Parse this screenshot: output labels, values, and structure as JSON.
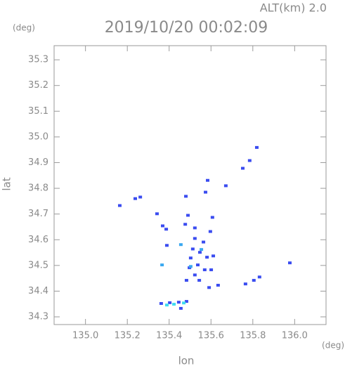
{
  "chart_data": {
    "type": "scatter",
    "title": "2019/10/20 00:02:09",
    "subtitle": "ALT(km) 2.0",
    "y_unit": "(deg)",
    "x_unit": "(deg)",
    "y_label": "lat",
    "x_label": "lon",
    "xlim": [
      134.85,
      136.15
    ],
    "ylim": [
      34.27,
      35.355
    ],
    "xticks": [
      {
        "value": 135,
        "label": "135.0"
      },
      135.2,
      135.4,
      135.6,
      135.8,
      {
        "value": 136,
        "label": "136.0"
      }
    ],
    "yticks": [
      34.3,
      34.4,
      34.5,
      34.6,
      34.7,
      34.8,
      34.9,
      {
        "value": 35,
        "label": "35.0"
      },
      35.1,
      35.2,
      35.3
    ],
    "series": [
      {
        "color": "#3a4cf0",
        "x": [
          135.164,
          135.238,
          135.262,
          135.342,
          135.369,
          135.386,
          135.389,
          135.48,
          135.584,
          135.574,
          135.671,
          135.752,
          135.785,
          135.819,
          135.477,
          135.49,
          135.523,
          135.607,
          135.597,
          135.564,
          135.513,
          135.547,
          135.503,
          135.537,
          135.497,
          135.57,
          135.601,
          135.611,
          135.523,
          135.483,
          135.544,
          135.634,
          135.581,
          135.523,
          135.591,
          135.765,
          135.805,
          135.832,
          135.977,
          135.362,
          135.403,
          135.446,
          135.483,
          135.456
        ],
        "values": [
          34.733,
          34.76,
          34.766,
          34.701,
          34.654,
          34.641,
          34.578,
          34.769,
          34.831,
          34.785,
          34.81,
          34.878,
          34.908,
          34.959,
          34.66,
          34.695,
          34.646,
          34.687,
          34.632,
          34.591,
          34.564,
          34.551,
          34.529,
          34.502,
          34.491,
          34.483,
          34.483,
          34.537,
          34.463,
          34.442,
          34.442,
          34.423,
          34.532,
          34.605,
          34.414,
          34.428,
          34.442,
          34.455,
          34.51,
          34.352,
          34.355,
          34.357,
          34.36,
          34.333
        ]
      },
      {
        "color": "#3aa8f0",
        "x": [
          135.366,
          135.456,
          135.554,
          135.503
        ],
        "values": [
          34.502,
          34.581,
          34.562,
          34.496
        ]
      },
      {
        "color": "#40dcf0",
        "x": [
          135.389,
          135.423,
          135.47
        ],
        "values": [
          34.346,
          34.349,
          34.354
        ]
      }
    ]
  }
}
